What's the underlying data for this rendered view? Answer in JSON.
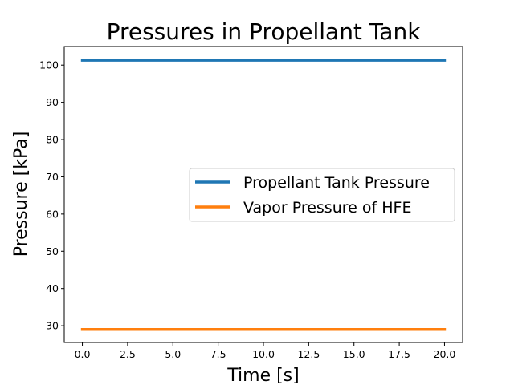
{
  "chart_data": {
    "type": "line",
    "title": "Pressures in Propellant Tank",
    "xlabel": "Time [s]",
    "ylabel": "Pressure [kPa]",
    "xlim": [
      -1.0,
      21.0
    ],
    "ylim": [
      25.5,
      105.0
    ],
    "xticks": [
      0.0,
      2.5,
      5.0,
      7.5,
      10.0,
      12.5,
      15.0,
      17.5,
      20.0
    ],
    "xtick_labels": [
      "0.0",
      "2.5",
      "5.0",
      "7.5",
      "10.0",
      "12.5",
      "15.0",
      "17.5",
      "20.0"
    ],
    "yticks": [
      30,
      40,
      50,
      60,
      70,
      80,
      90,
      100
    ],
    "ytick_labels": [
      "30",
      "40",
      "50",
      "60",
      "70",
      "80",
      "90",
      "100"
    ],
    "grid": false,
    "legend_position": "center-right",
    "series": [
      {
        "name": "Propellant Tank Pressure",
        "color": "#1f77b4",
        "x": [
          0,
          20
        ],
        "y": [
          101.3,
          101.3
        ]
      },
      {
        "name": "Vapor Pressure of HFE",
        "color": "#ff7f0e",
        "x": [
          0,
          20
        ],
        "y": [
          29.0,
          29.0
        ]
      }
    ]
  }
}
